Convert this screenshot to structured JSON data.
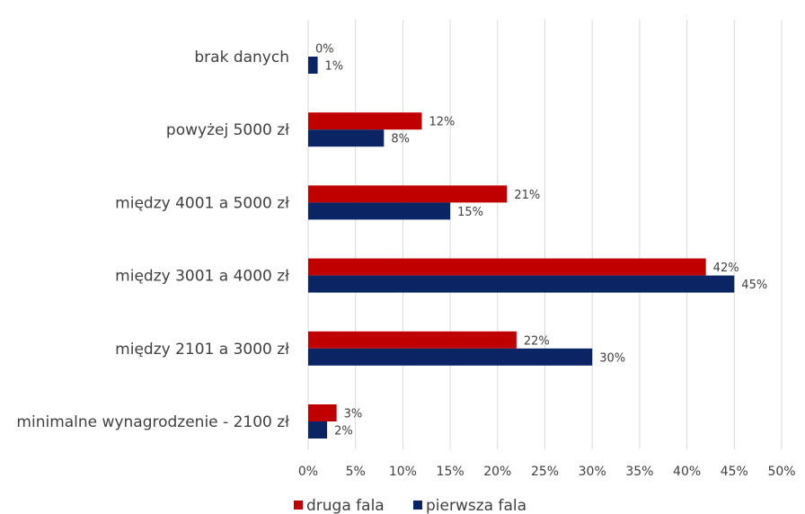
{
  "chart_data": {
    "type": "bar",
    "orientation": "horizontal",
    "categories": [
      "brak danych",
      "powyżej 5000 zł",
      "między 4001 a 5000 zł",
      "między 3001 a 4000 zł",
      "między 2101 a 3000 zł",
      "minimalne wynagrodzenie - 2100 zł"
    ],
    "series": [
      {
        "name": "druga fala",
        "color": "#C00000",
        "values": [
          0,
          12,
          21,
          42,
          22,
          3
        ]
      },
      {
        "name": "pierwsza fala",
        "color": "#0A2464",
        "values": [
          1,
          8,
          15,
          45,
          30,
          2
        ]
      }
    ],
    "value_labels": {
      "druga fala": [
        "0%",
        "12%",
        "21%",
        "42%",
        "22%",
        "3%"
      ],
      "pierwsza fala": [
        "1%",
        "8%",
        "15%",
        "45%",
        "30%",
        "2%"
      ]
    },
    "xlim": [
      0,
      50
    ],
    "xticks": [
      "0%",
      "5%",
      "10%",
      "15%",
      "20%",
      "25%",
      "30%",
      "35%",
      "40%",
      "45%",
      "50%"
    ],
    "grid": "vertical",
    "legend_position": "bottom",
    "title": "",
    "xlabel": "",
    "ylabel": ""
  }
}
